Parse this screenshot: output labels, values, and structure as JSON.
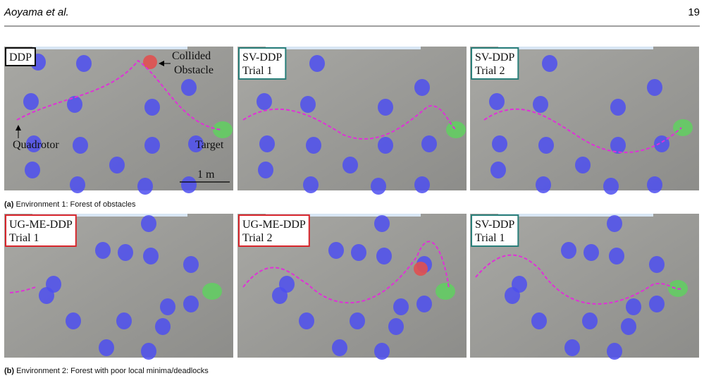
{
  "header": {
    "authors": "Aoyama et al.",
    "page": "19"
  },
  "figure": {
    "rows": [
      {
        "panels": [
          {
            "label": [
              "DDP"
            ],
            "frame_color": "#111111"
          },
          {
            "label": [
              "SV-DDP",
              "Trial 1"
            ],
            "frame_color": "#2a7f7a"
          },
          {
            "label": [
              "SV-DDP",
              "Trial 2"
            ],
            "frame_color": "#2a7f7a"
          }
        ],
        "annotations": {
          "collided": [
            "Collided",
            "Obstacle"
          ],
          "quadrotor": "Quadrotor",
          "target": "Target",
          "scale": "1 m"
        },
        "caption": {
          "tag": "(a)",
          "text": "Environment 1: Forest of obstacles"
        }
      },
      {
        "panels": [
          {
            "label": [
              "UG-ME-DDP",
              "Trial 1"
            ],
            "frame_color": "#d8262c"
          },
          {
            "label": [
              "UG-ME-DDP",
              "Trial 2"
            ],
            "frame_color": "#d8262c"
          },
          {
            "label": [
              "SV-DDP",
              "Trial 1"
            ],
            "frame_color": "#2a7f7a"
          }
        ],
        "caption": {
          "tag": "(b)",
          "text": "Environment 2: Forest with poor local minima/deadlocks"
        }
      }
    ]
  }
}
